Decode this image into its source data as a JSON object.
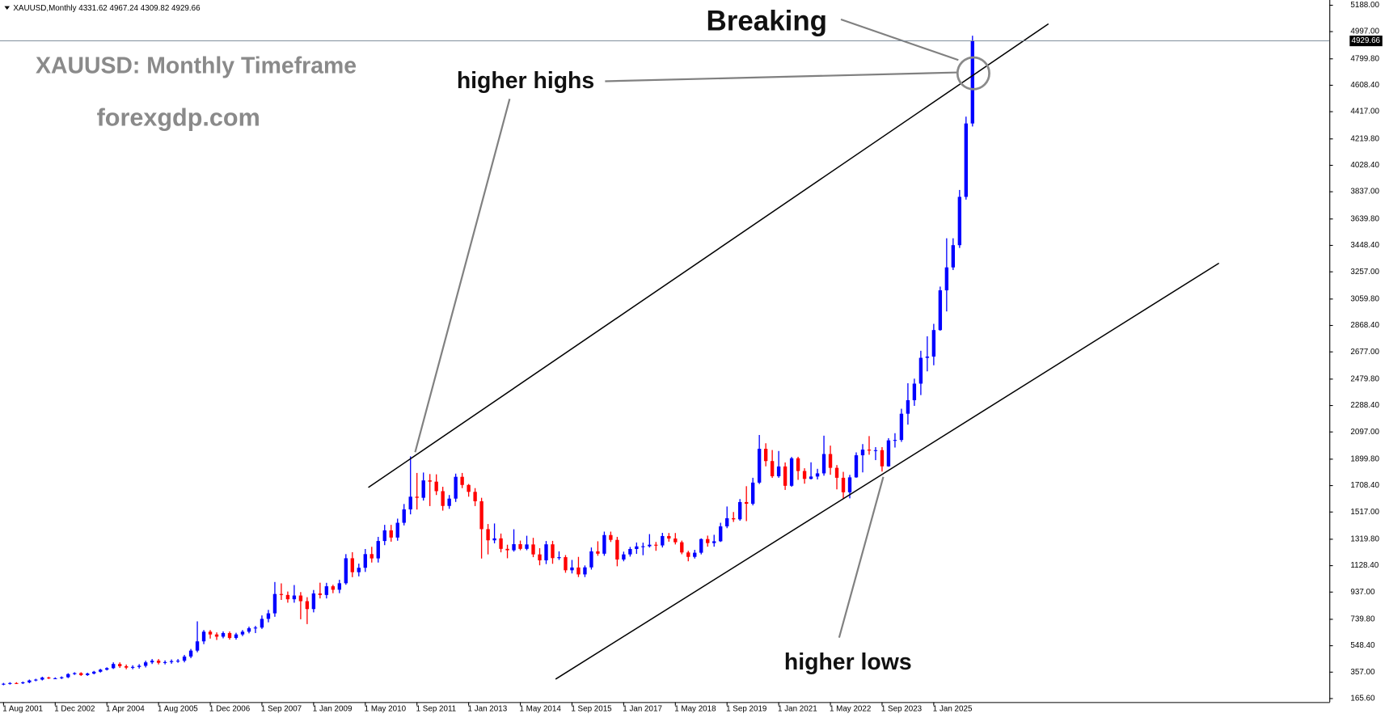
{
  "chart_data": {
    "type": "candlestick",
    "symbol": "XAUUSD,Monthly",
    "title": "XAUUSD: Monthly Timeframe",
    "subtitle": "forexgdp.com",
    "annotations": [
      "Breaking",
      "higher highs",
      "higher lows"
    ],
    "up_color": "#0000ff",
    "down_color": "#ff0000",
    "ylim": [
      140,
      5226
    ],
    "yticks": [
      {
        "value": 165.6,
        "label": "165.60"
      },
      {
        "value": 357,
        "label": "357.00"
      },
      {
        "value": 548.4,
        "label": "548.40"
      },
      {
        "value": 739.8,
        "label": "739.80"
      },
      {
        "value": 937,
        "label": "937.00"
      },
      {
        "value": 1128.4,
        "label": "1128.40"
      },
      {
        "value": 1319.8,
        "label": "1319.80"
      },
      {
        "value": 1517,
        "label": "1517.00"
      },
      {
        "value": 1708.4,
        "label": "1708.40"
      },
      {
        "value": 1899.8,
        "label": "1899.80"
      },
      {
        "value": 2097,
        "label": "2097.00"
      },
      {
        "value": 2288.4,
        "label": "2288.40"
      },
      {
        "value": 2479.8,
        "label": "2479.80"
      },
      {
        "value": 2677,
        "label": "2677.00"
      },
      {
        "value": 2868.4,
        "label": "2868.40"
      },
      {
        "value": 3059.8,
        "label": "3059.80"
      },
      {
        "value": 3257,
        "label": "3257.00"
      },
      {
        "value": 3448.4,
        "label": "3448.40"
      },
      {
        "value": 3639.8,
        "label": "3639.80"
      },
      {
        "value": 3837,
        "label": "3837.00"
      },
      {
        "value": 4028.4,
        "label": "4028.40"
      },
      {
        "value": 4219.8,
        "label": "4219.80"
      },
      {
        "value": 4417,
        "label": "4417.00"
      },
      {
        "value": 4608.4,
        "label": "4608.40"
      },
      {
        "value": 4799.8,
        "label": "4799.80"
      },
      {
        "value": 4997,
        "label": "4997.00"
      },
      {
        "value": 5188,
        "label": "5188.00"
      }
    ],
    "categories": [
      "1 Aug 2001",
      null,
      null,
      null,
      null,
      null,
      null,
      null,
      "1 Dec 2002",
      null,
      null,
      null,
      null,
      null,
      null,
      null,
      "1 Apr 2004",
      null,
      null,
      null,
      null,
      null,
      null,
      null,
      "1 Aug 2005",
      null,
      null,
      null,
      null,
      null,
      null,
      null,
      "1 Dec 2006",
      null,
      null,
      null,
      null,
      null,
      null,
      null,
      "1 Sep 2007",
      null,
      null,
      null,
      null,
      null,
      null,
      null,
      "1 Jan 2009",
      null,
      null,
      null,
      null,
      null,
      null,
      null,
      "1 May 2010",
      null,
      null,
      null,
      null,
      null,
      null,
      null,
      "1 Sep 2011",
      null,
      null,
      null,
      null,
      null,
      null,
      null,
      "1 Jan 2013",
      null,
      null,
      null,
      null,
      null,
      null,
      null,
      "1 May 2014",
      null,
      null,
      null,
      null,
      null,
      null,
      null,
      "1 Sep 2015",
      null,
      null,
      null,
      null,
      null,
      null,
      null,
      "1 Jan 2017",
      null,
      null,
      null,
      null,
      null,
      null,
      null,
      "1 May 2018",
      null,
      null,
      null,
      null,
      null,
      null,
      null,
      "1 Sep 2019",
      null,
      null,
      null,
      null,
      null,
      null,
      null,
      "1 Jan 2021",
      null,
      null,
      null,
      null,
      null,
      null,
      null,
      "1 May 2022",
      null,
      null,
      null,
      null,
      null,
      null,
      null,
      "1 Sep 2023",
      null,
      null,
      null,
      null,
      null,
      null,
      null,
      "1 Jan 2025",
      null,
      null,
      null,
      null,
      null,
      null
    ],
    "candles": [
      [
        268,
        279,
        262,
        273
      ],
      [
        273,
        284,
        267,
        278
      ],
      [
        278,
        284,
        271,
        277
      ],
      [
        277,
        289,
        271,
        283
      ],
      [
        283,
        303,
        277,
        297
      ],
      [
        297,
        309,
        291,
        303
      ],
      [
        303,
        324,
        297,
        318
      ],
      [
        318,
        324,
        307,
        313
      ],
      [
        313,
        319,
        307,
        313
      ],
      [
        313,
        326,
        307,
        320
      ],
      [
        320,
        349,
        314,
        343
      ],
      [
        343,
        356,
        337,
        350
      ],
      [
        350,
        356,
        330,
        336
      ],
      [
        336,
        353,
        330,
        347
      ],
      [
        347,
        366,
        341,
        360
      ],
      [
        360,
        381,
        354,
        375
      ],
      [
        375,
        392,
        369,
        386
      ],
      [
        386,
        428,
        380,
        416
      ],
      [
        416,
        428,
        388,
        400
      ],
      [
        400,
        412,
        378,
        390
      ],
      [
        390,
        407,
        378,
        395
      ],
      [
        395,
        415,
        383,
        403
      ],
      [
        403,
        440,
        391,
        428
      ],
      [
        428,
        452,
        416,
        440
      ],
      [
        440,
        452,
        413,
        425
      ],
      [
        425,
        442,
        413,
        430
      ],
      [
        430,
        449,
        418,
        437
      ],
      [
        437,
        452,
        425,
        440
      ],
      [
        440,
        482,
        428,
        470
      ],
      [
        470,
        525,
        458,
        513
      ],
      [
        513,
        725,
        501,
        580
      ],
      [
        580,
        662,
        560,
        650
      ],
      [
        650,
        662,
        600,
        630
      ],
      [
        630,
        645,
        590,
        614
      ],
      [
        614,
        652,
        602,
        640
      ],
      [
        640,
        652,
        593,
        605
      ],
      [
        605,
        642,
        593,
        630
      ],
      [
        630,
        662,
        618,
        650
      ],
      [
        650,
        687,
        638,
        675
      ],
      [
        675,
        692,
        640,
        680
      ],
      [
        680,
        768,
        670,
        743
      ],
      [
        743,
        808,
        718,
        783
      ],
      [
        783,
        1010,
        758,
        923
      ],
      [
        923,
        1000,
        880,
        916
      ],
      [
        916,
        941,
        860,
        885
      ],
      [
        885,
        988,
        860,
        912
      ],
      [
        912,
        937,
        740,
        871
      ],
      [
        871,
        900,
        705,
        814
      ],
      [
        814,
        952,
        790,
        927
      ],
      [
        927,
        1005,
        891,
        916
      ],
      [
        916,
        1004,
        891,
        979
      ],
      [
        979,
        990,
        929,
        954
      ],
      [
        954,
        1026,
        929,
        1001
      ],
      [
        1001,
        1212,
        990,
        1182
      ],
      [
        1182,
        1226,
        1045,
        1081
      ],
      [
        1081,
        1143,
        1051,
        1113
      ],
      [
        1113,
        1249,
        1083,
        1212
      ],
      [
        1212,
        1265,
        1151,
        1181
      ],
      [
        1181,
        1337,
        1151,
        1307
      ],
      [
        1307,
        1424,
        1277,
        1384
      ],
      [
        1384,
        1424,
        1302,
        1332
      ],
      [
        1332,
        1469,
        1309,
        1439
      ],
      [
        1439,
        1575,
        1420,
        1536
      ],
      [
        1536,
        1920,
        1500,
        1628
      ],
      [
        1628,
        1800,
        1535,
        1620
      ],
      [
        1620,
        1803,
        1600,
        1746
      ],
      [
        1746,
        1792,
        1560,
        1737
      ],
      [
        1737,
        1790,
        1640,
        1668
      ],
      [
        1668,
        1700,
        1527,
        1561
      ],
      [
        1561,
        1640,
        1540,
        1614
      ],
      [
        1614,
        1795,
        1590,
        1772
      ],
      [
        1772,
        1800,
        1690,
        1713
      ],
      [
        1713,
        1720,
        1628,
        1663
      ],
      [
        1663,
        1690,
        1560,
        1595
      ],
      [
        1595,
        1620,
        1180,
        1393
      ],
      [
        1393,
        1430,
        1210,
        1312
      ],
      [
        1312,
        1434,
        1290,
        1326
      ],
      [
        1326,
        1361,
        1225,
        1250
      ],
      [
        1250,
        1280,
        1182,
        1240
      ],
      [
        1240,
        1392,
        1230,
        1284
      ],
      [
        1284,
        1310,
        1240,
        1250
      ],
      [
        1250,
        1345,
        1240,
        1282
      ],
      [
        1282,
        1330,
        1190,
        1210
      ],
      [
        1210,
        1255,
        1131,
        1167
      ],
      [
        1167,
        1307,
        1140,
        1283
      ],
      [
        1283,
        1308,
        1142,
        1183
      ],
      [
        1183,
        1232,
        1170,
        1190
      ],
      [
        1190,
        1205,
        1077,
        1095
      ],
      [
        1095,
        1170,
        1072,
        1115
      ],
      [
        1115,
        1192,
        1046,
        1065
      ],
      [
        1065,
        1130,
        1046,
        1116
      ],
      [
        1116,
        1260,
        1100,
        1232
      ],
      [
        1232,
        1305,
        1200,
        1215
      ],
      [
        1215,
        1375,
        1200,
        1350
      ],
      [
        1350,
        1375,
        1300,
        1315
      ],
      [
        1315,
        1337,
        1124,
        1173
      ],
      [
        1173,
        1230,
        1160,
        1210
      ],
      [
        1210,
        1264,
        1194,
        1249
      ],
      [
        1249,
        1296,
        1214,
        1268
      ],
      [
        1268,
        1295,
        1204,
        1269
      ],
      [
        1269,
        1357,
        1260,
        1280
      ],
      [
        1280,
        1300,
        1236,
        1275
      ],
      [
        1275,
        1366,
        1260,
        1343
      ],
      [
        1343,
        1365,
        1302,
        1325
      ],
      [
        1325,
        1365,
        1282,
        1298
      ],
      [
        1298,
        1310,
        1211,
        1224
      ],
      [
        1224,
        1236,
        1160,
        1192
      ],
      [
        1192,
        1243,
        1180,
        1222
      ],
      [
        1222,
        1326,
        1210,
        1321
      ],
      [
        1321,
        1346,
        1266,
        1292
      ],
      [
        1292,
        1352,
        1266,
        1305
      ],
      [
        1305,
        1439,
        1300,
        1413
      ],
      [
        1413,
        1557,
        1400,
        1472
      ],
      [
        1472,
        1517,
        1445,
        1464
      ],
      [
        1464,
        1611,
        1454,
        1589
      ],
      [
        1589,
        1704,
        1451,
        1577
      ],
      [
        1577,
        1765,
        1565,
        1730
      ],
      [
        1730,
        2075,
        1720,
        1975
      ],
      [
        1975,
        2015,
        1848,
        1886
      ],
      [
        1886,
        1966,
        1764,
        1776
      ],
      [
        1776,
        1959,
        1765,
        1847
      ],
      [
        1847,
        1876,
        1677,
        1707
      ],
      [
        1707,
        1916,
        1700,
        1906
      ],
      [
        1906,
        1917,
        1750,
        1814
      ],
      [
        1814,
        1834,
        1722,
        1757
      ],
      [
        1757,
        1877,
        1753,
        1774
      ],
      [
        1774,
        1830,
        1753,
        1797
      ],
      [
        1797,
        2070,
        1780,
        1937
      ],
      [
        1937,
        1998,
        1787,
        1837
      ],
      [
        1837,
        1857,
        1681,
        1765
      ],
      [
        1765,
        1808,
        1615,
        1660
      ],
      [
        1660,
        1786,
        1616,
        1768
      ],
      [
        1768,
        1949,
        1765,
        1928
      ],
      [
        1928,
        2009,
        1804,
        1969
      ],
      [
        1969,
        2067,
        1932,
        1962
      ],
      [
        1962,
        1987,
        1893,
        1965
      ],
      [
        1965,
        1987,
        1810,
        1848
      ],
      [
        1848,
        2052,
        1845,
        2036
      ],
      [
        2036,
        2088,
        1984,
        2039
      ],
      [
        2039,
        2265,
        2025,
        2229
      ],
      [
        2229,
        2450,
        2150,
        2327
      ],
      [
        2327,
        2483,
        2286,
        2447
      ],
      [
        2447,
        2685,
        2364,
        2634
      ],
      [
        2634,
        2790,
        2536,
        2643
      ],
      [
        2643,
        2880,
        2580,
        2835
      ],
      [
        2835,
        3150,
        2830,
        3123
      ],
      [
        3123,
        3500,
        2970,
        3289
      ],
      [
        3289,
        3500,
        3270,
        3450
      ],
      [
        3450,
        3850,
        3430,
        3800
      ],
      [
        3800,
        4381,
        3780,
        4331.62
      ],
      [
        4331.62,
        4967.24,
        4309.82,
        4929.66
      ]
    ]
  }
}
